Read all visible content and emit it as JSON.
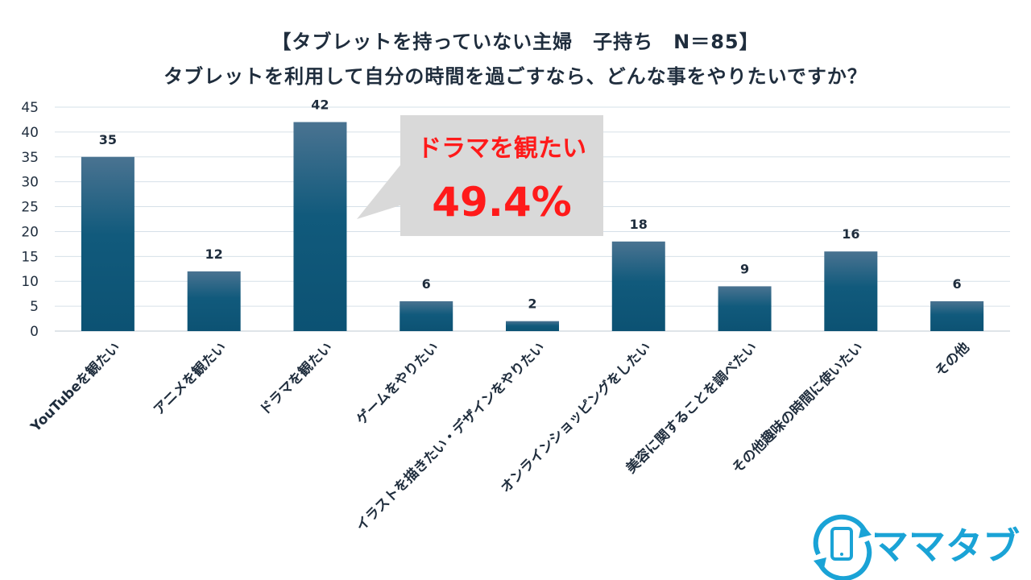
{
  "chart_data": {
    "type": "bar",
    "title": "【タブレットを持っていない主婦　子持ち　N＝85】",
    "subtitle": "タブレットを利用して自分の時間を過ごすなら、どんな事をやりたいですか？",
    "categories": [
      "YouTubeを観たい",
      "アニメを観たい",
      "ドラマを観たい",
      "ゲームをやりたい",
      "イラストを描きたい・デザインをやりたい",
      "オンラインショッピングをしたい",
      "美容に関することを調べたい",
      "その他趣味の時間に使いたい",
      "その他"
    ],
    "values": [
      35,
      12,
      42,
      6,
      2,
      18,
      9,
      16,
      6
    ],
    "ylim": [
      0,
      45
    ],
    "yticks": [
      0,
      5,
      10,
      15,
      20,
      25,
      30,
      35,
      40,
      45
    ],
    "grid": true,
    "bar_color_top": "#4a7391",
    "bar_color_bottom": "#0c5273",
    "annotation": {
      "label": "ドラマを観たい",
      "value": "49.4%",
      "color": "#ff1a1a",
      "background": "#d9d9d9"
    }
  },
  "logo": {
    "text": "ママタブ",
    "color": "#1aa3d6",
    "icon": "tablet-sync-icon"
  }
}
